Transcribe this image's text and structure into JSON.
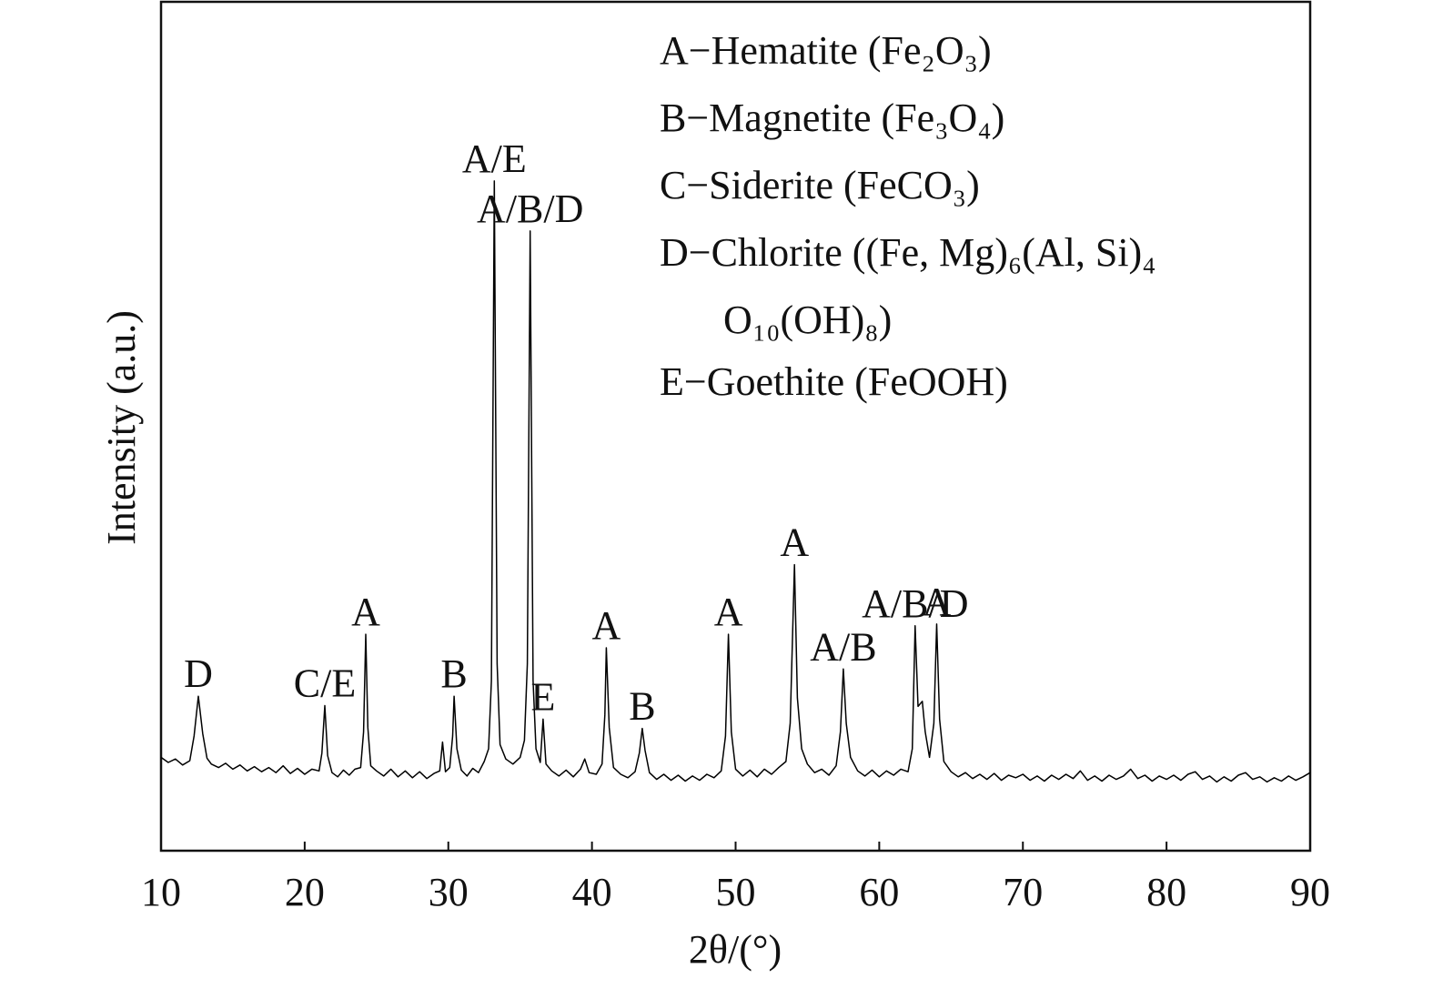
{
  "chart_data": {
    "type": "line",
    "x_label": "2θ/(°)",
    "y_label": "Intensity (a.u.)",
    "xlim": [
      10,
      90
    ],
    "xticks": [
      10,
      20,
      30,
      40,
      50,
      60,
      70,
      80,
      90
    ],
    "ylim": [
      0,
      100
    ],
    "x": [
      10,
      10.5,
      11,
      11.5,
      12,
      12.3,
      12.6,
      12.9,
      13.2,
      13.5,
      14,
      14.5,
      15,
      15.5,
      16,
      16.5,
      17,
      17.5,
      18,
      18.5,
      19,
      19.5,
      20,
      20.5,
      21,
      21.2,
      21.4,
      21.6,
      21.9,
      22.3,
      22.7,
      23.1,
      23.5,
      23.9,
      24.1,
      24.25,
      24.4,
      24.6,
      25,
      25.5,
      26,
      26.5,
      27,
      27.5,
      28,
      28.5,
      29,
      29.4,
      29.6,
      29.8,
      30.1,
      30.3,
      30.4,
      30.6,
      30.9,
      31.3,
      31.7,
      32.1,
      32.5,
      32.8,
      33.0,
      33.2,
      33.4,
      33.6,
      34.0,
      34.5,
      35.0,
      35.3,
      35.5,
      35.7,
      35.9,
      36.1,
      36.4,
      36.6,
      36.8,
      37.2,
      37.7,
      38.2,
      38.7,
      39.2,
      39.5,
      39.8,
      40.3,
      40.7,
      40.9,
      41.0,
      41.2,
      41.5,
      42,
      42.5,
      43,
      43.3,
      43.5,
      43.7,
      44,
      44.5,
      45,
      45.5,
      46,
      46.5,
      47,
      47.5,
      48,
      48.5,
      49,
      49.3,
      49.5,
      49.7,
      50,
      50.5,
      51,
      51.5,
      52,
      52.5,
      53,
      53.5,
      53.8,
      54.1,
      54.3,
      54.6,
      55,
      55.5,
      56,
      56.5,
      57,
      57.3,
      57.5,
      57.7,
      58,
      58.5,
      59,
      59.5,
      60,
      60.5,
      61,
      61.5,
      62,
      62.3,
      62.5,
      62.7,
      63.0,
      63.2,
      63.5,
      63.8,
      64.0,
      64.2,
      64.5,
      65,
      65.5,
      66,
      66.5,
      67,
      67.5,
      68,
      68.5,
      69,
      69.5,
      70,
      70.5,
      71,
      71.5,
      72,
      72.5,
      73,
      73.5,
      74,
      74.5,
      75,
      75.5,
      76,
      76.5,
      77,
      77.5,
      78,
      78.5,
      79,
      79.5,
      80,
      80.5,
      81,
      81.5,
      82,
      82.5,
      83,
      83.5,
      84,
      84.5,
      85,
      85.5,
      86,
      86.5,
      87,
      87.5,
      88,
      88.5,
      89,
      89.5,
      90
    ],
    "series": [
      {
        "color": "#000000",
        "values": [
          11.0,
          10.4,
          10.8,
          10.1,
          10.6,
          13.5,
          18.2,
          13.8,
          10.9,
          10.2,
          9.8,
          10.3,
          9.6,
          10.1,
          9.4,
          9.9,
          9.3,
          9.8,
          9.2,
          10.0,
          9.1,
          9.7,
          9.0,
          9.6,
          9.4,
          11.5,
          17.1,
          11.2,
          9.2,
          8.7,
          9.5,
          8.9,
          9.6,
          9.8,
          14.0,
          25.5,
          14.5,
          10.0,
          9.4,
          8.8,
          9.6,
          8.7,
          9.4,
          8.6,
          9.3,
          8.5,
          9.1,
          9.4,
          12.8,
          9.3,
          9.8,
          13.5,
          18.2,
          12.0,
          9.5,
          8.8,
          9.7,
          9.2,
          10.5,
          12.0,
          20.0,
          78.9,
          22.0,
          12.5,
          10.8,
          10.2,
          11.0,
          13.0,
          22.0,
          73.0,
          20.0,
          12.0,
          10.4,
          15.5,
          10.2,
          9.4,
          8.8,
          9.5,
          8.7,
          9.6,
          10.8,
          9.2,
          9.0,
          10.2,
          16.0,
          23.9,
          14.5,
          9.8,
          9.0,
          8.6,
          9.3,
          11.5,
          14.4,
          11.8,
          9.2,
          8.4,
          9.0,
          8.3,
          8.9,
          8.2,
          8.8,
          8.3,
          9.0,
          8.6,
          9.4,
          13.5,
          25.5,
          14.0,
          9.6,
          8.8,
          9.5,
          8.7,
          9.6,
          9.0,
          9.8,
          10.5,
          15.0,
          33.7,
          18.0,
          12.0,
          10.2,
          9.2,
          9.6,
          8.9,
          10.0,
          14.0,
          21.4,
          15.0,
          11.0,
          9.4,
          8.8,
          9.5,
          8.7,
          9.4,
          8.9,
          9.6,
          9.3,
          12.0,
          26.5,
          17.0,
          17.6,
          14.0,
          11.0,
          15.0,
          26.7,
          15.5,
          10.5,
          9.3,
          8.7,
          9.2,
          8.5,
          9.0,
          8.4,
          9.1,
          8.3,
          8.9,
          8.6,
          9.0,
          8.3,
          8.8,
          8.2,
          8.9,
          8.4,
          9.0,
          8.5,
          9.4,
          8.3,
          8.8,
          8.2,
          8.9,
          8.4,
          8.8,
          9.6,
          8.5,
          8.9,
          8.2,
          8.8,
          8.4,
          8.9,
          8.3,
          9.0,
          9.3,
          8.4,
          8.8,
          8.1,
          8.7,
          8.2,
          8.9,
          9.2,
          8.4,
          8.7,
          8.1,
          8.6,
          8.2,
          8.8,
          8.3,
          8.7,
          9.2
        ]
      }
    ],
    "annotations": [
      {
        "text": "D",
        "x": 12.6
      },
      {
        "text": "C/E",
        "x": 21.4
      },
      {
        "text": "A",
        "x": 24.25
      },
      {
        "text": "B",
        "x": 30.4
      },
      {
        "text": "A/E",
        "x": 33.2
      },
      {
        "text": "A/B/D",
        "x": 35.7
      },
      {
        "text": "E",
        "x": 36.6
      },
      {
        "text": "A",
        "x": 41.0
      },
      {
        "text": "B",
        "x": 43.5
      },
      {
        "text": "A",
        "x": 49.5
      },
      {
        "text": "A",
        "x": 54.1
      },
      {
        "text": "A/B",
        "x": 57.5
      },
      {
        "text": "A/B/D",
        "x": 62.5
      },
      {
        "text": "A",
        "x": 64.0
      }
    ],
    "legend": [
      [
        "A−Hematite (Fe₂O₃)"
      ],
      [
        "B−Magnetite (Fe₃O₄)"
      ],
      [
        "C−Siderite (FeCO₃)"
      ],
      [
        "D−Chlorite ((Fe, Mg)₆(Al, Si)₄",
        "O₁₀(OH)₈)"
      ],
      [
        "E−Goethite (FeOOH)"
      ]
    ]
  }
}
